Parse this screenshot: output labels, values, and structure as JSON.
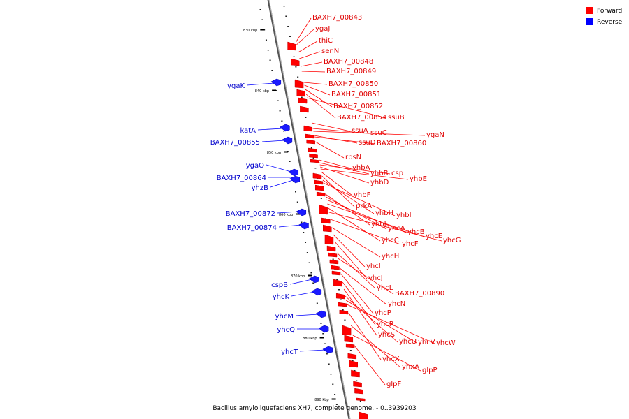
{
  "caption": "Bacillus amyloliquefaciens XH7, complete genome. - 0..3939203",
  "legend": [
    {
      "label": "Forward",
      "color": "#ff0000"
    },
    {
      "label": "Reverse",
      "color": "#0000ff"
    }
  ],
  "ticks": [
    "830 kbp",
    "840 kbp",
    "850 kbp",
    "860 kbp",
    "870 kbp",
    "880 kbp",
    "890 kbp"
  ],
  "forward_genes": [
    "BAXH7_00843",
    "ygaJ",
    "thiC",
    "senN",
    "BAXH7_00848",
    "BAXH7_00849",
    "BAXH7_00850",
    "BAXH7_00851",
    "BAXH7_00852",
    "BAXH7_00854",
    "ssuB",
    "ssuA",
    "ssuC",
    "ygaN",
    "ssuD",
    "BAXH7_00860",
    "rpsN",
    "yhbA",
    "yhbB",
    "csp",
    "yhbD",
    "yhbE",
    "yhbF",
    "prkA",
    "yhbH",
    "yhbI",
    "yhbJ",
    "yhcA",
    "yhcB",
    "yhcE",
    "yhcC",
    "yhcG",
    "yhcF",
    "yhcH",
    "yhcI",
    "yhcJ",
    "yhcL",
    "BAXH7_00890",
    "yhcN",
    "yhcP",
    "yhcR",
    "yhcS",
    "yhcU",
    "yhcV",
    "yhcW",
    "yhcX",
    "yhxA",
    "glpP",
    "glpF"
  ],
  "reverse_genes": [
    "ygaK",
    "katA",
    "BAXH7_00855",
    "ygaO",
    "BAXH7_00864",
    "yhzB",
    "BAXH7_00872",
    "BAXH7_00874",
    "cspB",
    "yhcK",
    "yhcM",
    "yhcQ",
    "yhcT"
  ]
}
